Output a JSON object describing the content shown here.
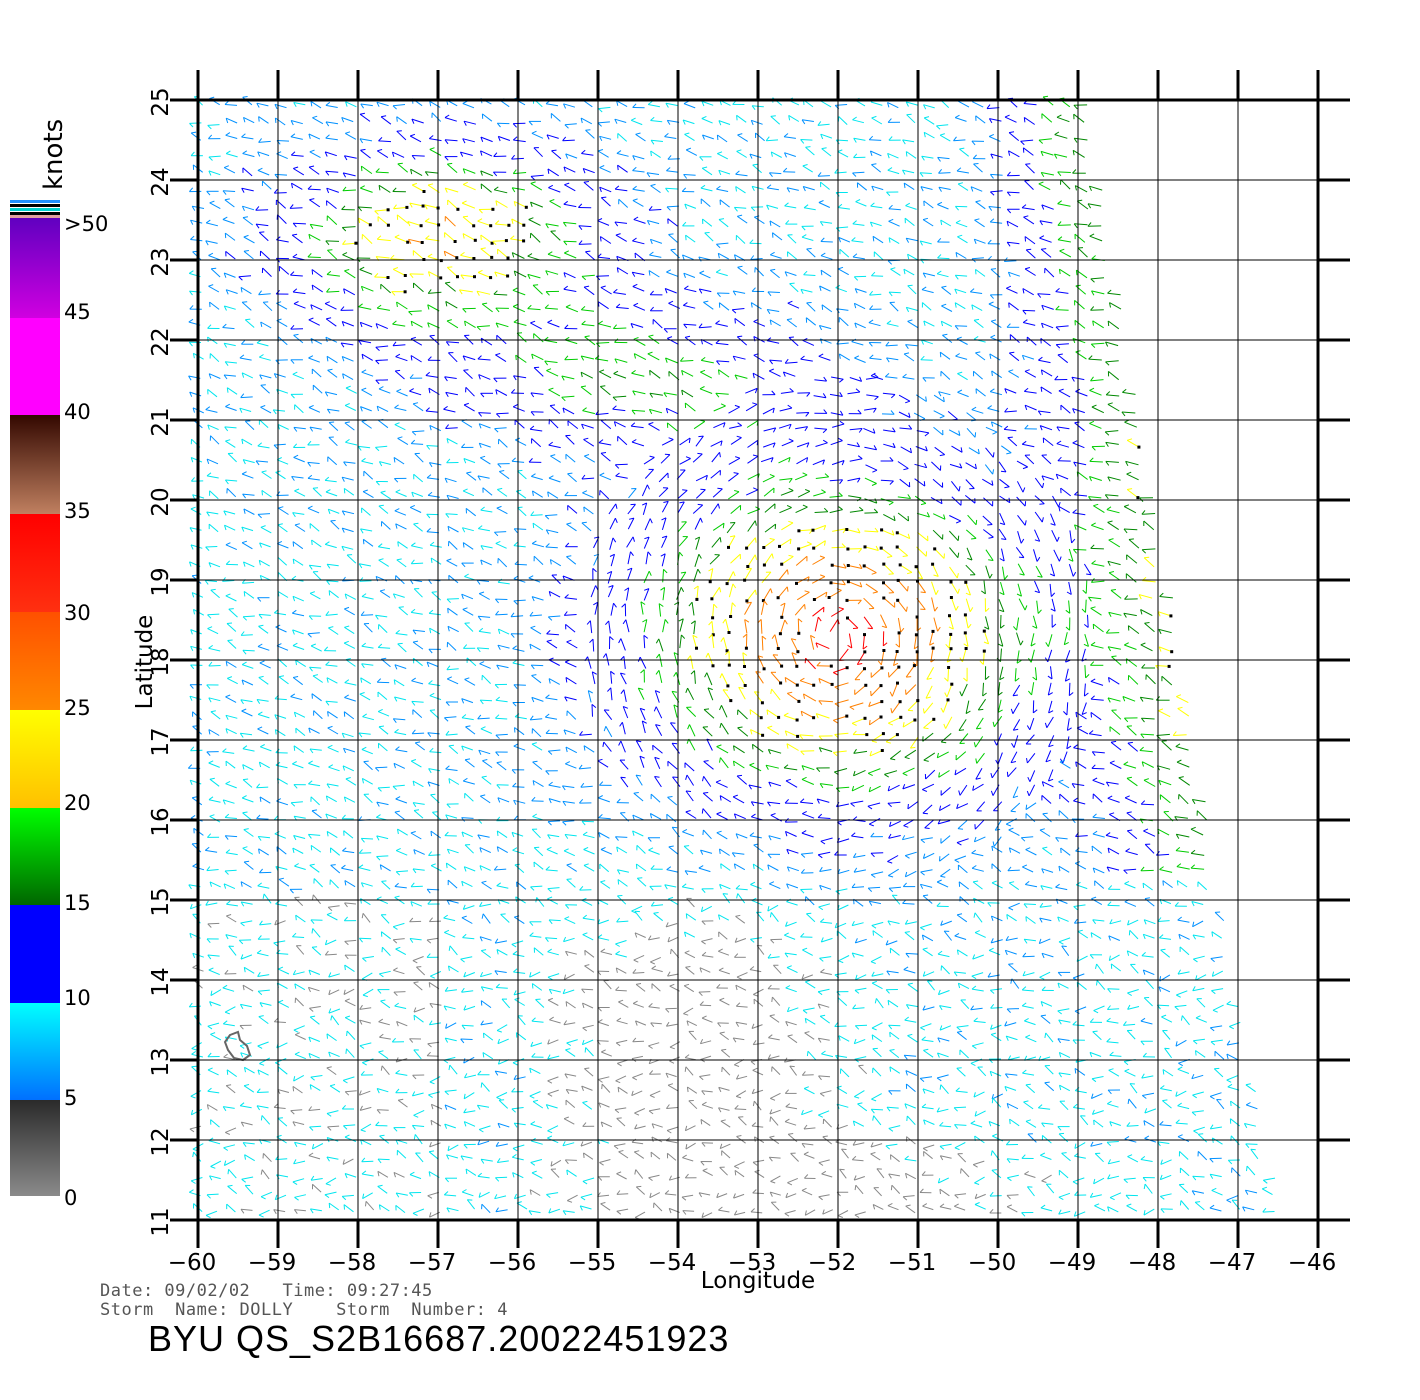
{
  "chart_data": {
    "type": "scatter",
    "subtype": "wind-vector-field",
    "xlabel": "Longitude",
    "ylabel": "Latitude",
    "xlim": [
      -60.0,
      -45.6
    ],
    "ylim": [
      11,
      25
    ],
    "x_ticks": [
      -60,
      -59,
      -58,
      -57,
      -56,
      -55,
      -54,
      -53,
      -52,
      -51,
      -50,
      -49,
      -48,
      -47,
      -46
    ],
    "y_ticks": [
      11,
      12,
      13,
      14,
      15,
      16,
      17,
      18,
      19,
      20,
      21,
      22,
      23,
      24,
      25
    ],
    "grid": true,
    "colorbar": {
      "title": "knots",
      "ticks": [
        "0",
        "5",
        "10",
        "15",
        "20",
        "25",
        "30",
        "35",
        "40",
        "45",
        ">50"
      ],
      "placement": "left"
    },
    "swath_edge_points": [
      {
        "lon": -48.8,
        "lat": 25.0
      },
      {
        "lon": -47.8,
        "lat": 19.0
      },
      {
        "lon": -47.0,
        "lat": 14.0
      },
      {
        "lon": -46.4,
        "lat": 11.0
      }
    ],
    "max_wind_center": {
      "lon": -52.0,
      "lat": 18.3
    }
  },
  "colors": {
    "0": "#888888",
    "5": "#00e5ee",
    "10": "#0090ff",
    "15": "#0000ff",
    "20": "#00cc00",
    "25": "#ffff00",
    "30": "#ff8000",
    "35": "#ff0000",
    "40": "#c08060",
    "45": "#ff00ff",
    "50": "#7000d0"
  },
  "footer": {
    "date_time": "Date: 09/02/02   Time: 09:27:45",
    "storm": "Storm  Name: DOLLY    Storm  Number: 4",
    "title": "BYU  QS_S2B16687.20022451923"
  }
}
